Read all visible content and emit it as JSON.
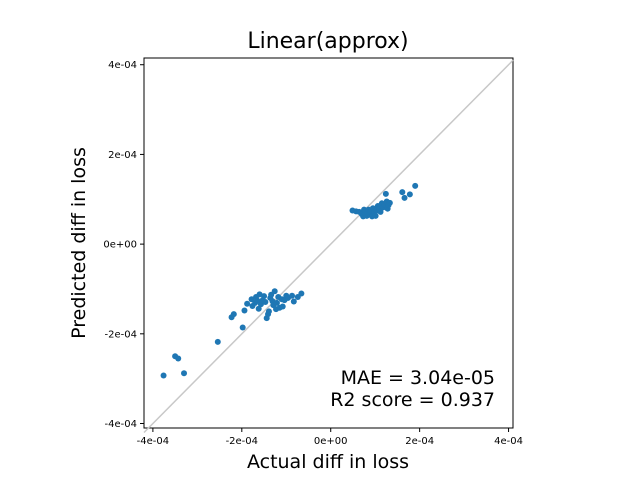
{
  "chart_data": {
    "type": "scatter",
    "title": "Linear(approx)",
    "xlabel": "Actual diff in loss",
    "ylabel": "Predicted diff in loss",
    "xlim": [
      -0.00042,
      0.00041
    ],
    "ylim": [
      -0.00041,
      0.000415
    ],
    "xticks": [
      -0.0004,
      -0.0002,
      0.0,
      0.0002,
      0.0004
    ],
    "xtick_labels": [
      "-4e-04",
      "-2e-04",
      "0e+00",
      "2e-04",
      "4e-04"
    ],
    "yticks": [
      -0.0004,
      -0.0002,
      0.0,
      0.0002,
      0.0004
    ],
    "ytick_labels": [
      "-4e-04",
      "-2e-04",
      "0e+00",
      "2e-04",
      "4e-04"
    ],
    "grid": false,
    "colors": {
      "point": "#1f77b4",
      "reference_line": "#c8c8c8",
      "axes": "#000000"
    },
    "reference_line": {
      "from": [
        -0.00042,
        -0.00042
      ],
      "to": [
        0.00041,
        0.00041
      ]
    },
    "annotations": [
      "MAE = 3.04e-05",
      "R2 score = 0.937"
    ],
    "series": [
      {
        "points": [
          [
            -0.000376,
            -0.000293
          ],
          [
            -0.00035,
            -0.00025
          ],
          [
            -0.000343,
            -0.000255
          ],
          [
            -0.00033,
            -0.000288
          ],
          [
            -0.000254,
            -0.000218
          ],
          [
            -0.000223,
            -0.000163
          ],
          [
            -0.000218,
            -0.000156
          ],
          [
            -0.000198,
            -0.000186
          ],
          [
            -0.000194,
            -0.000148
          ],
          [
            -0.000188,
            -0.000133
          ],
          [
            -0.000178,
            -0.000123
          ],
          [
            -0.000176,
            -0.000138
          ],
          [
            -0.00017,
            -0.000131
          ],
          [
            -0.000168,
            -0.000118
          ],
          [
            -0.000165,
            -0.000126
          ],
          [
            -0.000162,
            -0.000144
          ],
          [
            -0.00016,
            -0.000112
          ],
          [
            -0.000157,
            -0.000134
          ],
          [
            -0.000153,
            -0.000125
          ],
          [
            -0.00015,
            -0.000116
          ],
          [
            -0.000147,
            -0.000129
          ],
          [
            -0.000144,
            -0.000165
          ],
          [
            -0.000141,
            -0.000156
          ],
          [
            -0.000139,
            -0.00015
          ],
          [
            -0.000136,
            -0.00012
          ],
          [
            -0.000134,
            -0.000113
          ],
          [
            -0.000131,
            -0.000127
          ],
          [
            -0.000129,
            -0.000136
          ],
          [
            -0.000126,
            -0.000105
          ],
          [
            -0.000123,
            -0.000145
          ],
          [
            -0.000121,
            -0.000131
          ],
          [
            -0.000118,
            -0.000118
          ],
          [
            -0.000115,
            -0.000142
          ],
          [
            -0.00011,
            -0.000123
          ],
          [
            -0.000108,
            -0.000139
          ],
          [
            -0.000104,
            -0.000125
          ],
          [
            -0.0001,
            -0.000115
          ],
          [
            -9.6e-05,
            -0.00012
          ],
          [
            -8.7e-05,
            -0.000115
          ],
          [
            -8.3e-05,
            -0.000128
          ],
          [
            -7.4e-05,
            -0.000118
          ],
          [
            -6.6e-05,
            -0.00011
          ],
          [
            4.9e-05,
            7.5e-05
          ],
          [
            5.7e-05,
            7.3e-05
          ],
          [
            6.4e-05,
            7.2e-05
          ],
          [
            7e-05,
            6.7e-05
          ],
          [
            7.3e-05,
            6.2e-05
          ],
          [
            7.5e-05,
            7.7e-05
          ],
          [
            7.7e-05,
            6.8e-05
          ],
          [
            7.9e-05,
            7.4e-05
          ],
          [
            8.1e-05,
            6.3e-05
          ],
          [
            8.3e-05,
            7e-05
          ],
          [
            8.5e-05,
            7.7e-05
          ],
          [
            8.7e-05,
            6.6e-05
          ],
          [
            8.9e-05,
            7.1e-05
          ],
          [
            9.1e-05,
            7.4e-05
          ],
          [
            9.3e-05,
            6.2e-05
          ],
          [
            9.5e-05,
            8e-05
          ],
          [
            9.7e-05,
            6.7e-05
          ],
          [
            9.9e-05,
            7.2e-05
          ],
          [
            0.000101,
            6.3e-05
          ],
          [
            0.000103,
            7.5e-05
          ],
          [
            0.000106,
            8.5e-05
          ],
          [
            0.000109,
            7.8e-05
          ],
          [
            0.000112,
            7.2e-05
          ],
          [
            0.000115,
            9.1e-05
          ],
          [
            0.000118,
            8.2e-05
          ],
          [
            0.000121,
            8.8e-05
          ],
          [
            0.000124,
            0.000112
          ],
          [
            0.000126,
            9.5e-05
          ],
          [
            0.000128,
            7.9e-05
          ],
          [
            0.00013,
            8.7e-05
          ],
          [
            0.000133,
            9.2e-05
          ],
          [
            0.000161,
            0.000116
          ],
          [
            0.000166,
            0.000103
          ],
          [
            0.000178,
            0.000111
          ],
          [
            0.00019,
            0.00013
          ]
        ]
      }
    ]
  }
}
